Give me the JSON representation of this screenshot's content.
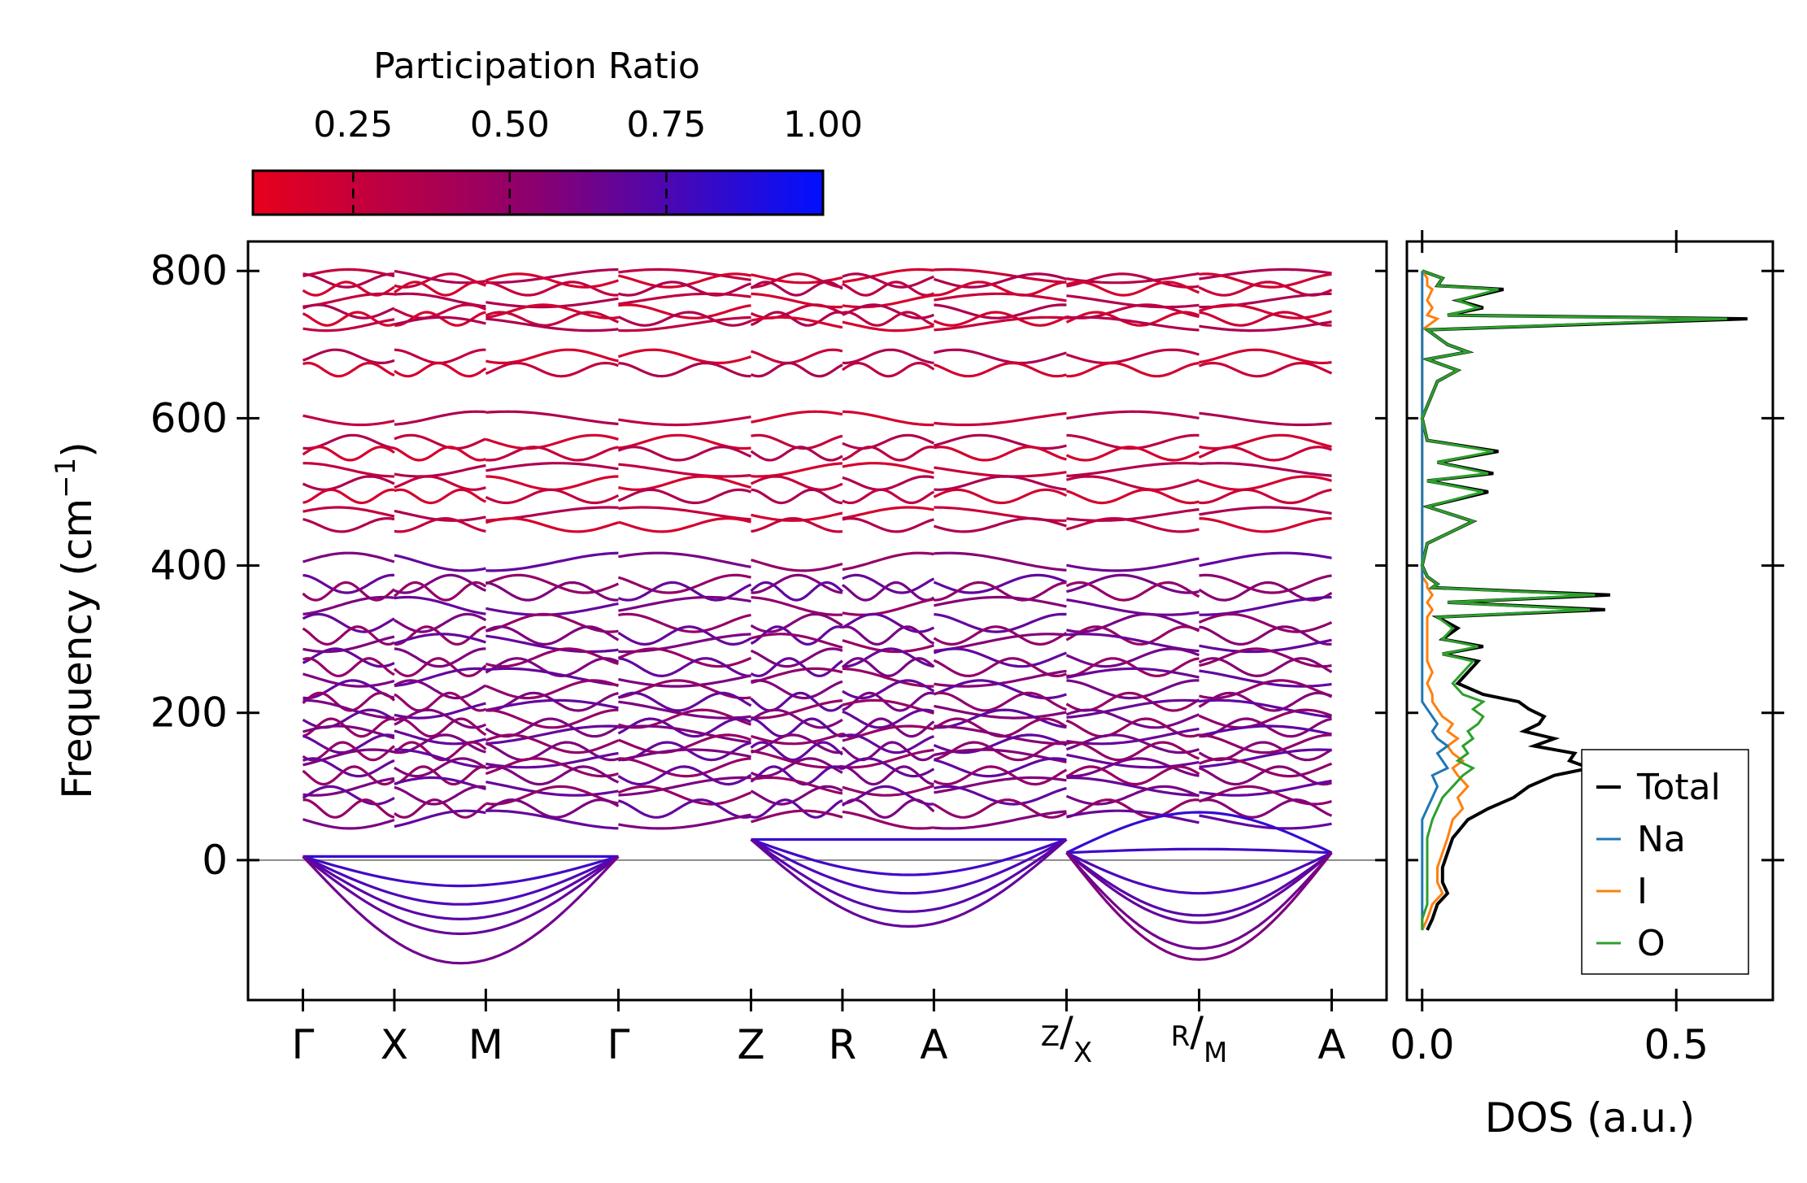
{
  "chart_data": [
    {
      "type": "line",
      "panel": "phonon-band-structure",
      "ylabel": "Frequency (cm",
      "ylabel_sup": "−1",
      "ylabel_suffix": ")",
      "ylim": [
        -190,
        840
      ],
      "yticks": [
        0,
        200,
        400,
        600,
        800
      ],
      "ytick_labels": [
        "0",
        "200",
        "400",
        "600",
        "800"
      ],
      "kpath_positions": [
        0,
        1,
        2,
        3.45,
        4.9,
        5.9,
        6.9,
        8.35,
        9.8,
        11.25
      ],
      "xlim": [
        -0.6,
        11.85
      ],
      "kpath_labels": [
        {
          "main": "Γ"
        },
        {
          "main": "X"
        },
        {
          "main": "M"
        },
        {
          "main": "Γ"
        },
        {
          "main": "Z"
        },
        {
          "main": "R"
        },
        {
          "main": "A"
        },
        {
          "sup": "Z",
          "sub": "X"
        },
        {
          "sup": "R",
          "sub": "M"
        },
        {
          "main": "A"
        }
      ],
      "zero_line": 0,
      "band_groups": {
        "high_frequency_cm1": [
          793,
          787,
          776,
          760,
          745,
          735,
          728,
          684,
          666,
          600,
          568,
          552,
          530,
          512,
          494,
          470,
          455
        ],
        "mid_frequency_cm1": [
          405,
          375,
          365,
          345,
          322,
          305,
          295,
          275,
          262,
          248,
          232,
          215,
          205,
          192,
          180,
          170,
          158,
          148,
          138,
          126,
          115,
          100,
          88,
          70,
          55
        ],
        "acoustic_and_soft_modes_cm1": [
          {
            "name": "Γ-X-M",
            "values": [
              5,
              -35,
              -60,
              -80,
              -100,
              -140
            ]
          },
          {
            "name": "Z-R-A",
            "values": [
              28,
              -20,
              -45,
              -70,
              -90
            ]
          },
          {
            "name": "X-M-A",
            "values": [
              65,
              15,
              -45,
              -75,
              -85,
              -120,
              -135
            ]
          }
        ]
      },
      "colorbar": {
        "label": "Participation Ratio",
        "ticks": [
          0.25,
          0.5,
          0.75,
          1.0
        ],
        "tick_labels": [
          "0.25",
          "0.50",
          "0.75",
          "1.00"
        ],
        "range": [
          0.09,
          1.0
        ],
        "color_low": "#e8001c",
        "color_mid": "#8a0070",
        "color_high": "#0010ff"
      }
    },
    {
      "type": "line",
      "panel": "density-of-states",
      "xlabel": "DOS (a.u.)",
      "xlim": [
        -0.03,
        0.69
      ],
      "xticks": [
        0.0,
        0.5
      ],
      "xtick_labels": [
        "0.0",
        "0.5"
      ],
      "ylim": [
        -190,
        840
      ],
      "freq": [
        -95,
        -80,
        -60,
        -45,
        -30,
        -10,
        10,
        30,
        55,
        70,
        85,
        100,
        115,
        125,
        135,
        145,
        155,
        165,
        175,
        185,
        195,
        205,
        215,
        225,
        240,
        255,
        270,
        280,
        290,
        300,
        315,
        330,
        340,
        350,
        360,
        370,
        375,
        385,
        400,
        430,
        460,
        480,
        500,
        515,
        525,
        540,
        555,
        570,
        600,
        650,
        665,
        680,
        690,
        700,
        720,
        735,
        740,
        750,
        760,
        775,
        780,
        790,
        800
      ],
      "series": [
        {
          "name": "Total",
          "color": "#000000",
          "values": [
            0.01,
            0.02,
            0.03,
            0.05,
            0.04,
            0.04,
            0.05,
            0.06,
            0.09,
            0.13,
            0.18,
            0.21,
            0.26,
            0.33,
            0.29,
            0.3,
            0.22,
            0.26,
            0.2,
            0.23,
            0.24,
            0.21,
            0.19,
            0.12,
            0.07,
            0.09,
            0.11,
            0.04,
            0.12,
            0.04,
            0.07,
            0.03,
            0.36,
            0.05,
            0.37,
            0.02,
            0.03,
            0.01,
            0.0,
            0.01,
            0.1,
            0.01,
            0.13,
            0.01,
            0.14,
            0.03,
            0.15,
            0.01,
            0.0,
            0.03,
            0.07,
            0.01,
            0.09,
            0.05,
            0.01,
            0.64,
            0.05,
            0.12,
            0.07,
            0.16,
            0.03,
            0.04,
            0.0
          ]
        },
        {
          "name": "Na",
          "color": "#1f77b4",
          "values": [
            0.0,
            0.0,
            0.0,
            0.0,
            0.0,
            0.0,
            0.0,
            0.0,
            0.0,
            0.01,
            0.02,
            0.03,
            0.02,
            0.05,
            0.04,
            0.03,
            0.05,
            0.03,
            0.02,
            0.03,
            0.02,
            0.01,
            0.0,
            0.0,
            0.0,
            0.0,
            0.0,
            0.0,
            0.0,
            0.0,
            0.0,
            0.0,
            0.0,
            0.0,
            0.0,
            0.0,
            0.0,
            0.0,
            0.0,
            0.0,
            0.0,
            0.0,
            0.0,
            0.0,
            0.0,
            0.0,
            0.0,
            0.0,
            0.0,
            0.0,
            0.0,
            0.0,
            0.0,
            0.0,
            0.0,
            0.0,
            0.0,
            0.0,
            0.0,
            0.0,
            0.0,
            0.0,
            0.0
          ]
        },
        {
          "name": "I",
          "color": "#ff7f0e",
          "values": [
            0.0,
            0.01,
            0.02,
            0.04,
            0.03,
            0.03,
            0.04,
            0.05,
            0.06,
            0.08,
            0.07,
            0.09,
            0.07,
            0.06,
            0.08,
            0.06,
            0.05,
            0.07,
            0.05,
            0.06,
            0.04,
            0.03,
            0.02,
            0.02,
            0.01,
            0.02,
            0.01,
            0.01,
            0.01,
            0.01,
            0.01,
            0.01,
            0.02,
            0.01,
            0.02,
            0.01,
            0.01,
            0.0,
            0.0,
            0.0,
            0.0,
            0.0,
            0.0,
            0.0,
            0.0,
            0.0,
            0.0,
            0.0,
            0.0,
            0.0,
            0.0,
            0.0,
            0.0,
            0.0,
            0.0,
            0.03,
            0.01,
            0.02,
            0.01,
            0.02,
            0.01,
            0.01,
            0.0
          ]
        },
        {
          "name": "O",
          "color": "#2ca02c",
          "values": [
            0.0,
            0.0,
            0.01,
            0.01,
            0.01,
            0.01,
            0.01,
            0.01,
            0.02,
            0.03,
            0.04,
            0.06,
            0.08,
            0.1,
            0.07,
            0.09,
            0.08,
            0.1,
            0.09,
            0.11,
            0.12,
            0.1,
            0.12,
            0.08,
            0.06,
            0.08,
            0.1,
            0.04,
            0.11,
            0.04,
            0.06,
            0.03,
            0.33,
            0.05,
            0.34,
            0.02,
            0.03,
            0.01,
            0.0,
            0.01,
            0.1,
            0.01,
            0.12,
            0.01,
            0.13,
            0.03,
            0.14,
            0.01,
            0.0,
            0.03,
            0.07,
            0.01,
            0.09,
            0.05,
            0.01,
            0.6,
            0.05,
            0.11,
            0.07,
            0.15,
            0.03,
            0.04,
            0.0
          ]
        }
      ],
      "legend": {
        "placement": "lower-right",
        "entries": [
          {
            "label": "Total",
            "color": "#000000"
          },
          {
            "label": "Na",
            "color": "#1f77b4"
          },
          {
            "label": "I",
            "color": "#ff7f0e"
          },
          {
            "label": "O",
            "color": "#2ca02c"
          }
        ]
      }
    }
  ]
}
